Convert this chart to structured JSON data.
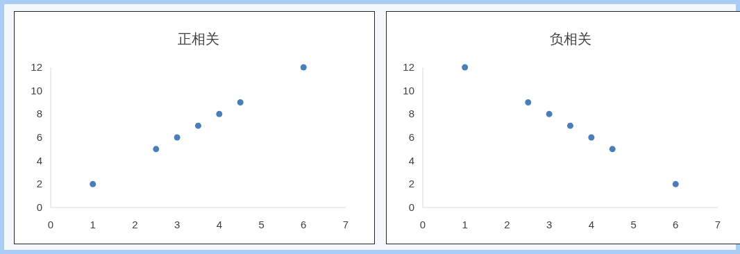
{
  "chart_data": [
    {
      "type": "scatter",
      "title": "正相关",
      "x": [
        1,
        2.5,
        3,
        3.5,
        4,
        4.5,
        6
      ],
      "values": [
        2,
        5,
        6,
        7,
        8,
        9,
        12
      ],
      "color": "#4a7ebb",
      "xlim": [
        0,
        7
      ],
      "ylim": [
        0,
        12
      ],
      "xticks": [
        0,
        1,
        2,
        3,
        4,
        5,
        6,
        7
      ],
      "yticks": [
        0,
        2,
        4,
        6,
        8,
        10,
        12
      ],
      "grid": false,
      "marker": "circle"
    },
    {
      "type": "scatter",
      "title": "负相关",
      "x": [
        1,
        2.5,
        3,
        3.5,
        4,
        4.5,
        6
      ],
      "values": [
        12,
        9,
        8,
        7,
        6,
        5,
        2
      ],
      "color": "#4a7ebb",
      "xlim": [
        0,
        7
      ],
      "ylim": [
        0,
        12
      ],
      "xticks": [
        0,
        1,
        2,
        3,
        4,
        5,
        6,
        7
      ],
      "yticks": [
        0,
        2,
        4,
        6,
        8,
        10,
        12
      ],
      "grid": false,
      "marker": "circle"
    }
  ]
}
